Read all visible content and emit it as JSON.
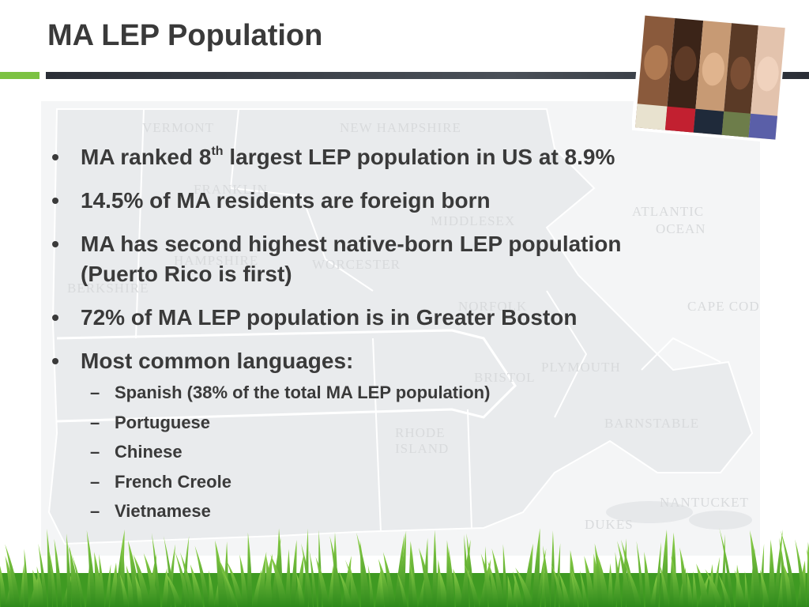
{
  "slide": {
    "title": "MA LEP Population",
    "accent_green": "#7cc242",
    "rule_dark": "#2f343c"
  },
  "bullets": [
    {
      "text_pre": "MA ranked 8",
      "sup": "th",
      "text_post": " largest LEP population in US at 8.9%"
    },
    {
      "text": "14.5% of MA residents are foreign born"
    },
    {
      "text": "MA has second highest native-born LEP population (Puerto Rico is first)"
    },
    {
      "text": "72% of MA LEP population is in Greater Boston"
    },
    {
      "text": "Most common languages:"
    }
  ],
  "languages": [
    "Spanish (38% of the total MA LEP population)",
    "Portuguese",
    "Chinese",
    "French Creole",
    "Vietnamese"
  ],
  "map_labels": {
    "vermont": "Vermont",
    "new_hampshire": "New Hampshire",
    "franklin": "Franklin",
    "middlesex": "Middlesex",
    "worcester": "Worcester",
    "hampshire": "Hampshire",
    "berkshire": "Berkshire",
    "atlantic": "Atlantic",
    "ocean": "Ocean",
    "norfolk": "Norfolk",
    "cape_cod": "Cape Cod",
    "bristol": "Bristol",
    "plymouth": "Plymouth",
    "barnstable": "Barnstable",
    "rhode": "Rhode",
    "island": "Island",
    "nantucket": "Nantucket",
    "dukes": "Dukes"
  },
  "decor": {
    "photo": "people-faces-strip",
    "grass": "grass-footer"
  }
}
